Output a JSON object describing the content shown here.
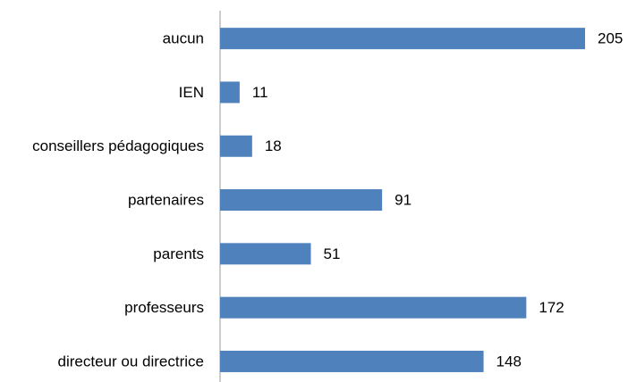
{
  "chart_data": {
    "type": "bar",
    "orientation": "horizontal",
    "categories": [
      "aucun",
      "IEN",
      "conseillers pédagogiques",
      "partenaires",
      "parents",
      "professeurs",
      "directeur ou directrice"
    ],
    "values": [
      205,
      11,
      18,
      91,
      51,
      172,
      148
    ],
    "color": "#4f81bd"
  }
}
